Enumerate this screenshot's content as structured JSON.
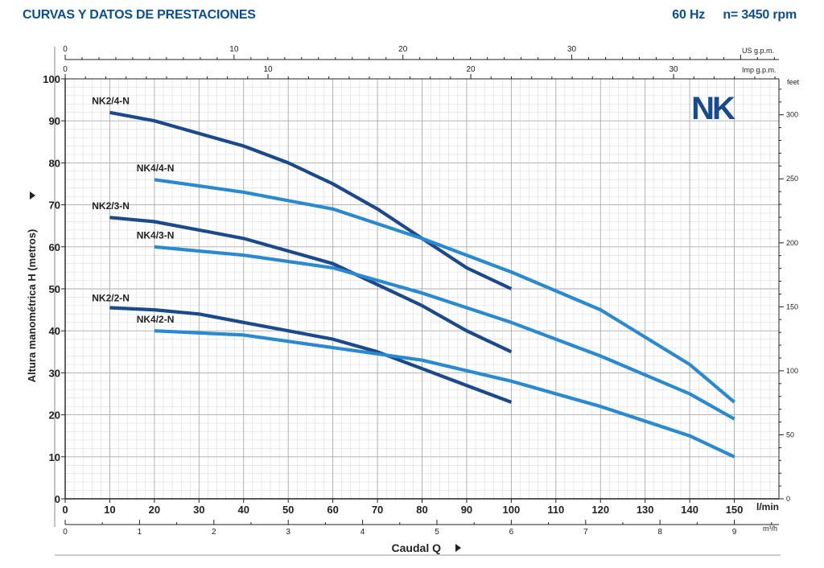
{
  "header": {
    "title": "CURVAS Y DATOS DE PRESTACIONES",
    "frequency": "60 Hz",
    "speed": "n= 3450 rpm"
  },
  "chart_data": {
    "type": "line",
    "brand_logo": "NK",
    "ylabel": "Altura manométrica H (metros)",
    "xlabel": "Caudal Q",
    "x_unit": "l/min",
    "x_secondary_unit": "m³/h",
    "us_unit": "US g.p.m.",
    "imp_unit": "Imp g.p.m.",
    "feet_unit": "feet",
    "xlim": [
      0,
      160
    ],
    "ylim": [
      0,
      100
    ],
    "grid": true,
    "x_ticks": [
      0,
      10,
      20,
      30,
      40,
      50,
      60,
      70,
      80,
      90,
      100,
      110,
      120,
      130,
      140,
      150
    ],
    "y_ticks": [
      0,
      10,
      20,
      30,
      40,
      50,
      60,
      70,
      80,
      90,
      100
    ],
    "m3h_ticks": [
      0,
      1,
      2,
      3,
      4,
      5,
      6,
      7,
      8,
      9
    ],
    "usgpm_ticks": [
      0,
      10,
      20,
      30
    ],
    "impgpm_ticks": [
      0,
      10,
      20,
      30
    ],
    "feet_ticks": [
      0,
      50,
      100,
      150,
      200,
      250,
      300
    ],
    "colors": {
      "dark": "#1a4a8c",
      "light": "#2a8ad0",
      "grid": "#c8c8c8"
    },
    "series": [
      {
        "name": "NK2/4-N",
        "color": "#1a4a8c",
        "label_at": [
          6,
          94
        ],
        "x": [
          10,
          20,
          30,
          40,
          50,
          60,
          70,
          80,
          90,
          100
        ],
        "y": [
          92,
          90,
          87,
          84,
          80,
          75,
          69,
          62,
          55,
          50
        ]
      },
      {
        "name": "NK4/4-N",
        "color": "#2a8ad0",
        "label_at": [
          16,
          78
        ],
        "x": [
          20,
          40,
          60,
          80,
          100,
          120,
          140,
          150
        ],
        "y": [
          76,
          73,
          69,
          62,
          54,
          45,
          32,
          23
        ]
      },
      {
        "name": "NK2/3-N",
        "color": "#1a4a8c",
        "label_at": [
          6,
          69
        ],
        "x": [
          10,
          20,
          30,
          40,
          50,
          60,
          70,
          80,
          90,
          100
        ],
        "y": [
          67,
          66,
          64,
          62,
          59,
          56,
          51,
          46,
          40,
          35
        ]
      },
      {
        "name": "NK4/3-N",
        "color": "#2a8ad0",
        "label_at": [
          16,
          62
        ],
        "x": [
          20,
          40,
          60,
          80,
          100,
          120,
          140,
          150
        ],
        "y": [
          60,
          58,
          55,
          49,
          42,
          34,
          25,
          19
        ]
      },
      {
        "name": "NK2/2-N",
        "color": "#1a4a8c",
        "label_at": [
          6,
          47
        ],
        "x": [
          10,
          20,
          30,
          40,
          50,
          60,
          70,
          80,
          90,
          100
        ],
        "y": [
          45.5,
          45,
          44,
          42,
          40,
          38,
          35,
          31,
          27,
          23
        ]
      },
      {
        "name": "NK4/2-N",
        "color": "#2a8ad0",
        "label_at": [
          16,
          42
        ],
        "x": [
          20,
          40,
          60,
          80,
          100,
          120,
          140,
          150
        ],
        "y": [
          40,
          39,
          36,
          33,
          28,
          22,
          15,
          10
        ]
      }
    ]
  }
}
